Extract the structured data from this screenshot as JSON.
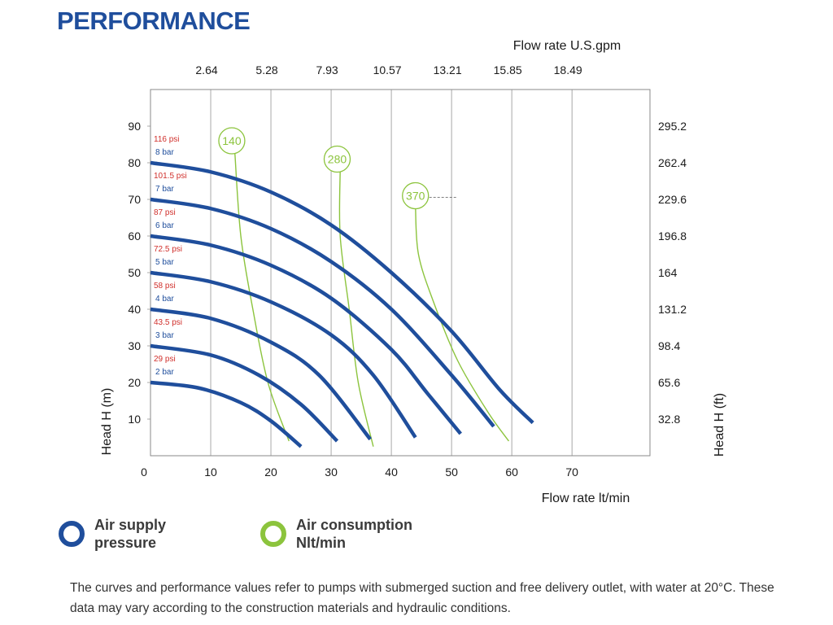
{
  "title": "PERFORMANCE",
  "chart_data": {
    "type": "line",
    "xlabel": "Flow rate  lt/min",
    "xlim": [
      0,
      80
    ],
    "x_ticks": [
      0,
      10,
      20,
      30,
      40,
      50,
      60,
      70
    ],
    "ylabel_left": "Head H (m)",
    "ylim": [
      0,
      100
    ],
    "y_ticks_left": [
      10,
      20,
      30,
      40,
      50,
      60,
      70,
      80,
      90
    ],
    "x2label": "Flow rate U.S.gpm",
    "x2_ticks": [
      {
        "label": "2.64",
        "x": 10
      },
      {
        "label": "5.28",
        "x": 20
      },
      {
        "label": "7.93",
        "x": 30
      },
      {
        "label": "10.57",
        "x": 40
      },
      {
        "label": "13.21",
        "x": 50
      },
      {
        "label": "15.85",
        "x": 60
      },
      {
        "label": "18.49",
        "x": 70
      }
    ],
    "ylabel_right": "Head H (ft)",
    "y_ticks_right": [
      {
        "label": "32.8",
        "y": 10
      },
      {
        "label": "65.6",
        "y": 20
      },
      {
        "label": "98.4",
        "y": 30
      },
      {
        "label": "131.2",
        "y": 40
      },
      {
        "label": "164",
        "y": 50
      },
      {
        "label": "196.8",
        "y": 60
      },
      {
        "label": "229.6",
        "y": 70
      },
      {
        "label": "262.4",
        "y": 80
      },
      {
        "label": "295.2",
        "y": 90
      }
    ],
    "grid": "vertical",
    "pressure_curves": [
      {
        "psi": "29 psi",
        "bar": "2 bar",
        "points": [
          [
            0,
            20
          ],
          [
            8,
            18.5
          ],
          [
            15,
            14.5
          ],
          [
            20,
            9.5
          ],
          [
            25,
            2.5
          ]
        ]
      },
      {
        "psi": "43.5 psi",
        "bar": "3 bar",
        "points": [
          [
            0,
            30
          ],
          [
            10,
            27.5
          ],
          [
            18,
            22
          ],
          [
            25,
            14
          ],
          [
            31,
            4
          ]
        ]
      },
      {
        "psi": "58 psi",
        "bar": "4 bar",
        "points": [
          [
            0,
            40
          ],
          [
            10,
            37.5
          ],
          [
            20,
            31
          ],
          [
            28,
            22
          ],
          [
            36.5,
            4.5
          ]
        ]
      },
      {
        "psi": "72.5 psi",
        "bar": "5 bar",
        "points": [
          [
            0,
            50
          ],
          [
            10,
            47.5
          ],
          [
            20,
            42
          ],
          [
            30,
            33
          ],
          [
            37,
            22
          ],
          [
            44,
            5
          ]
        ]
      },
      {
        "psi": "87 psi",
        "bar": "6 bar",
        "points": [
          [
            0,
            60
          ],
          [
            10,
            57.5
          ],
          [
            20,
            52
          ],
          [
            30,
            43
          ],
          [
            40,
            29
          ],
          [
            46,
            17
          ],
          [
            51.5,
            6
          ]
        ]
      },
      {
        "psi": "101.5 psi",
        "bar": "7 bar",
        "points": [
          [
            0,
            70
          ],
          [
            10,
            67.5
          ],
          [
            20,
            62
          ],
          [
            30,
            53
          ],
          [
            40,
            40
          ],
          [
            50,
            22
          ],
          [
            57,
            8
          ]
        ]
      },
      {
        "psi": "116 psi",
        "bar": "8 bar",
        "points": [
          [
            0,
            80
          ],
          [
            10,
            77.5
          ],
          [
            20,
            72
          ],
          [
            30,
            63
          ],
          [
            40,
            50
          ],
          [
            50,
            34
          ],
          [
            58,
            18
          ],
          [
            63.5,
            9
          ]
        ]
      }
    ],
    "air_consumption_curves": [
      {
        "label": "140",
        "label_at": [
          13.5,
          86
        ],
        "points": [
          [
            14,
            83
          ],
          [
            15,
            60
          ],
          [
            17,
            40
          ],
          [
            19.5,
            20
          ],
          [
            23,
            4
          ]
        ]
      },
      {
        "label": "280",
        "label_at": [
          31,
          81
        ],
        "points": [
          [
            31.5,
            78
          ],
          [
            31.5,
            60
          ],
          [
            33,
            40
          ],
          [
            34.5,
            20
          ],
          [
            37,
            2.5
          ]
        ]
      },
      {
        "label": "370",
        "label_at": [
          44,
          71
        ],
        "points": [
          [
            44,
            68
          ],
          [
            44.5,
            55
          ],
          [
            47,
            42
          ],
          [
            51,
            26
          ],
          [
            56,
            12
          ],
          [
            59.5,
            4
          ]
        ]
      }
    ],
    "annotations": [
      {
        "text": "Air supply",
        "series": "pressure_curves"
      },
      {
        "text": "pressure",
        "series": "pressure_curves"
      },
      {
        "text": "Air consumption",
        "series": "air_consumption_curves"
      },
      {
        "text": "Nlt/min",
        "series": "air_consumption_curves"
      }
    ]
  },
  "legend": {
    "air_supply_line1": "Air supply",
    "air_supply_line2": "pressure",
    "air_consumption_line1": "Air consumption",
    "air_consumption_line2": "Nlt/min"
  },
  "colors": {
    "brand_blue": "#1f4e9c",
    "pressure_line": "#1f4e9c",
    "consumption_line": "#8cc43d",
    "psi_label": "#d0302c"
  },
  "footnote": "The curves and performance values refer to pumps with submerged suction and free delivery outlet, with water at 20°C. These data may vary according to the construction materials and hydraulic conditions."
}
